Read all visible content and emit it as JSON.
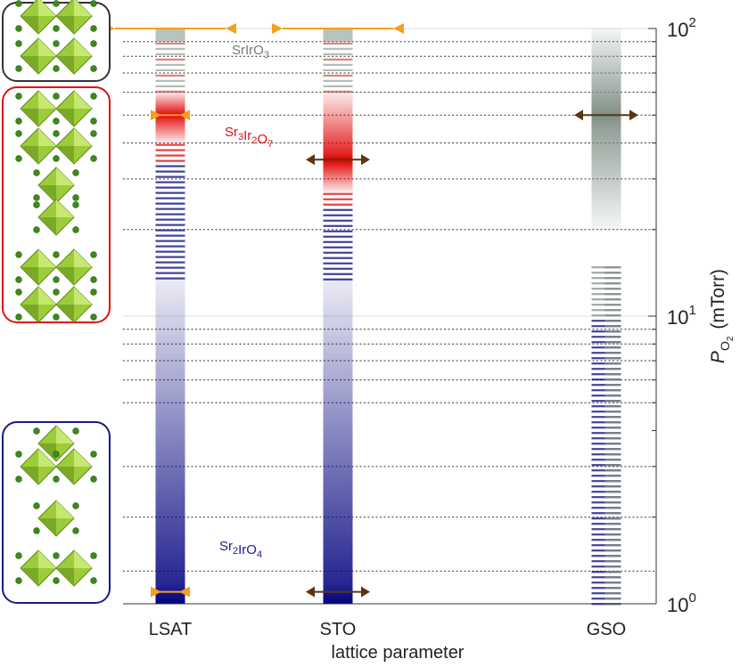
{
  "chart_data": {
    "type": "bar",
    "title": "",
    "xlabel": "lattice parameter",
    "ylabel": "P_O2 (mTorr)",
    "ylabel_main": "P",
    "ylabel_sub": "O",
    "ylabel_subsub": "2",
    "ylabel_unit": "(mTorr)",
    "yscale": "log",
    "ylim": [
      1,
      100
    ],
    "yticks": [
      {
        "value": 1,
        "base": "10",
        "exp": "0"
      },
      {
        "value": 10,
        "base": "10",
        "exp": "1"
      },
      {
        "value": 100,
        "base": "10",
        "exp": "2"
      }
    ],
    "categories": [
      "LSAT",
      "STO",
      "GSO"
    ],
    "dashed_levels": [
      1.3,
      2,
      3,
      5,
      6,
      7,
      8,
      9,
      20,
      30,
      40,
      50,
      60,
      70,
      80,
      90
    ],
    "phases": [
      {
        "key": "srio3",
        "label": "SrIrO3",
        "parts": [
          [
            "Sr",
            ""
          ],
          [
            "Ir",
            ""
          ],
          [
            "O",
            "3"
          ]
        ],
        "color": "#7f8f86",
        "label_color": "#777777",
        "label_value": 85
      },
      {
        "key": "sr327",
        "label": "Sr3Ir2O7",
        "parts": [
          [
            "Sr",
            "3"
          ],
          [
            "Ir",
            "2"
          ],
          [
            "O",
            "7"
          ]
        ],
        "color": "#e00000",
        "label_color": "#e01010",
        "label_value": 44
      },
      {
        "key": "sr214",
        "label": "Sr2IrO4",
        "parts": [
          [
            "Sr",
            "2"
          ],
          [
            "Ir",
            ""
          ],
          [
            "O",
            "4"
          ]
        ],
        "color": "#00007d",
        "label_color": "#1a1a9a",
        "label_value": 1.6
      }
    ],
    "series": [
      {
        "name": "LSAT",
        "segments": [
          {
            "phase": "srio3",
            "from": 90,
            "to": 100,
            "style": "solid"
          },
          {
            "phase": "srio3",
            "from": 60,
            "to": 90,
            "style": "stripes"
          },
          {
            "phase": "sr327",
            "from": 40,
            "to": 60,
            "style": "gradient",
            "peak": 50
          },
          {
            "phase": "sr214",
            "from": 13.5,
            "to": 40,
            "style": "stripes",
            "alt": "sr327"
          },
          {
            "phase": "sr214",
            "from": 1,
            "to": 13.5,
            "style": "gradient",
            "peak": 1
          }
        ]
      },
      {
        "name": "STO",
        "segments": [
          {
            "phase": "srio3",
            "from": 90,
            "to": 100,
            "style": "solid"
          },
          {
            "phase": "srio3",
            "from": 60,
            "to": 90,
            "style": "stripes"
          },
          {
            "phase": "sr327",
            "from": 27,
            "to": 60,
            "style": "gradient",
            "peak": 35
          },
          {
            "phase": "sr214",
            "from": 13.5,
            "to": 27,
            "style": "stripes",
            "alt": "sr327"
          },
          {
            "phase": "sr214",
            "from": 1,
            "to": 13.5,
            "style": "gradient",
            "peak": 1
          }
        ]
      },
      {
        "name": "GSO",
        "segments": [
          {
            "phase": "srio3",
            "from": 20,
            "to": 100,
            "style": "gradient",
            "peak": 50
          },
          {
            "phase": "sr214",
            "from": 1,
            "to": 15,
            "style": "stripes",
            "alt": "srio3"
          }
        ]
      }
    ],
    "markers": [
      {
        "category": "LSAT",
        "value": 100,
        "color": "#f5a020",
        "style": "wide"
      },
      {
        "category": "LSAT",
        "value": 50,
        "color": "#f5a020",
        "style": "inward"
      },
      {
        "category": "LSAT",
        "value": 1.1,
        "color": "#f5a020",
        "style": "inward"
      },
      {
        "category": "STO",
        "value": 100,
        "color": "#f5a020",
        "style": "wide"
      },
      {
        "category": "STO",
        "value": 35,
        "color": "#5a3510",
        "style": "outward"
      },
      {
        "category": "STO",
        "value": 1.1,
        "color": "#5a3510",
        "style": "outward"
      },
      {
        "category": "GSO",
        "value": 50,
        "color": "#5a3510",
        "style": "outward"
      }
    ],
    "structure_panels": [
      {
        "phase": "srio3",
        "border_color": "#333333"
      },
      {
        "phase": "sr327",
        "border_color": "#e01010"
      },
      {
        "phase": "sr214",
        "border_color": "#1a1a8a"
      }
    ]
  }
}
